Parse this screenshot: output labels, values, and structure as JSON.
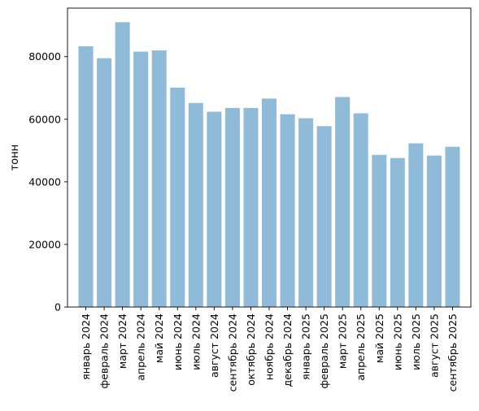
{
  "chart_data": {
    "type": "bar",
    "title": "",
    "xlabel": "",
    "ylabel": "тонн",
    "ylim": [
      0,
      95500
    ],
    "yticks": [
      0,
      20000,
      40000,
      60000,
      80000
    ],
    "ytick_labels": [
      "0",
      "20000",
      "40000",
      "60000",
      "80000"
    ],
    "grid": false,
    "bar_color": "#8fbbd9",
    "categories": [
      "январь 2024",
      "февраль 2024",
      "март 2024",
      "апрель 2024",
      "май 2024",
      "июнь 2024",
      "июль 2024",
      "август 2024",
      "сентябрь 2024",
      "октябрь 2024",
      "ноябрь 2024",
      "декабрь 2024",
      "январь 2025",
      "февраль 2025",
      "март 2025",
      "апрель 2025",
      "май 2025",
      "июнь 2025",
      "июль 2025",
      "август 2025",
      "сентябрь 2025"
    ],
    "values": [
      83300,
      79500,
      91000,
      81600,
      82000,
      70100,
      65200,
      62400,
      63600,
      63600,
      66600,
      61600,
      60300,
      57800,
      67100,
      61900,
      48600,
      47600,
      52300,
      48400,
      51200
    ]
  }
}
